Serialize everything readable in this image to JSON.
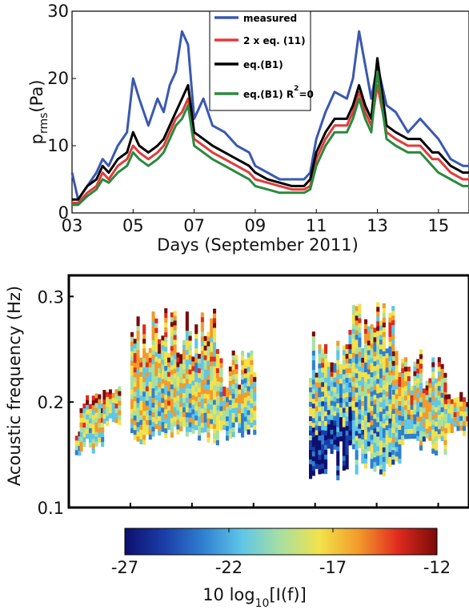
{
  "chart_data": [
    {
      "type": "line",
      "xlabel": "Days (September 2011)",
      "ylabel": "p",
      "ylabel_sub": "rms",
      "ylabel_unit": "(Pa)",
      "xlim": [
        3,
        16
      ],
      "ylim": [
        0,
        30
      ],
      "x_ticks": [
        3,
        5,
        7,
        9,
        11,
        13,
        15
      ],
      "x_tick_labels": [
        "03",
        "05",
        "07",
        "09",
        "11",
        "13",
        "15"
      ],
      "y_ticks": [
        0,
        10,
        20,
        30
      ],
      "y_tick_labels": [
        "0",
        "10",
        "20",
        "30"
      ],
      "legend_position": "top-center",
      "series": [
        {
          "name": "measured",
          "color": "#3a58b0",
          "x": [
            3.0,
            3.2,
            3.5,
            3.8,
            4.0,
            4.2,
            4.5,
            4.8,
            5.0,
            5.2,
            5.5,
            5.8,
            6.0,
            6.2,
            6.4,
            6.6,
            6.8,
            7.0,
            7.3,
            7.6,
            8.0,
            8.4,
            8.8,
            9.0,
            9.4,
            9.8,
            10.2,
            10.6,
            10.8,
            11.0,
            11.3,
            11.6,
            12.0,
            12.2,
            12.4,
            12.6,
            12.8,
            13.0,
            13.3,
            13.6,
            14.0,
            14.4,
            14.8,
            15.0,
            15.4,
            15.8,
            16.0
          ],
          "y": [
            6,
            2,
            4,
            6,
            8,
            7,
            10,
            12,
            20,
            17,
            13,
            17,
            15,
            19,
            21,
            27,
            25,
            14,
            17,
            13,
            12,
            10,
            9,
            7,
            6,
            5,
            5,
            5,
            6,
            11,
            15,
            18,
            17,
            20,
            27,
            22,
            17,
            22,
            16,
            15,
            12,
            14,
            12,
            11,
            8,
            7,
            7
          ]
        },
        {
          "name": "2 x eq. (11)",
          "color": "#e23a3a",
          "x": [
            3.0,
            3.2,
            3.5,
            3.8,
            4.0,
            4.2,
            4.5,
            4.8,
            5.0,
            5.2,
            5.5,
            5.8,
            6.0,
            6.2,
            6.4,
            6.6,
            6.8,
            7.0,
            7.3,
            7.6,
            8.0,
            8.4,
            8.8,
            9.0,
            9.4,
            9.8,
            10.2,
            10.6,
            10.8,
            11.0,
            11.3,
            11.6,
            12.0,
            12.2,
            12.4,
            12.6,
            12.8,
            13.0,
            13.3,
            13.6,
            14.0,
            14.4,
            14.8,
            15.0,
            15.4,
            15.8,
            16.0
          ],
          "y": [
            1.5,
            1.5,
            3,
            4,
            6,
            5,
            7,
            8,
            10,
            9,
            8,
            9,
            10,
            12,
            14,
            15,
            17,
            11,
            10,
            9,
            8,
            7,
            6,
            5,
            4.5,
            4,
            3.5,
            3.5,
            4,
            8,
            11,
            13,
            13,
            15,
            18,
            15,
            13,
            19,
            12,
            11,
            10,
            10,
            8,
            8,
            6,
            5,
            5
          ]
        },
        {
          "name": "eq.(B1)",
          "color": "#000000",
          "x": [
            3.0,
            3.2,
            3.5,
            3.8,
            4.0,
            4.2,
            4.5,
            4.8,
            5.0,
            5.2,
            5.5,
            5.8,
            6.0,
            6.2,
            6.4,
            6.6,
            6.8,
            7.0,
            7.3,
            7.6,
            8.0,
            8.4,
            8.8,
            9.0,
            9.4,
            9.8,
            10.2,
            10.6,
            10.8,
            11.0,
            11.3,
            11.6,
            12.0,
            12.2,
            12.4,
            12.6,
            12.8,
            13.0,
            13.3,
            13.6,
            14.0,
            14.4,
            14.8,
            15.0,
            15.4,
            15.8,
            16.0
          ],
          "y": [
            2,
            2,
            4,
            5,
            7,
            6,
            8,
            9,
            12,
            10,
            9,
            10,
            11,
            13,
            15,
            17,
            19,
            12,
            11,
            10,
            9,
            8,
            7,
            6,
            5,
            4.5,
            4,
            4,
            5,
            9,
            12,
            14,
            14,
            16,
            19,
            16,
            14,
            23,
            13,
            12,
            11,
            11,
            9,
            9,
            7,
            6,
            6
          ]
        },
        {
          "name": "eq.(B1) R²=0",
          "color": "#2a8a3e",
          "x": [
            3.0,
            3.2,
            3.5,
            3.8,
            4.0,
            4.2,
            4.5,
            4.8,
            5.0,
            5.2,
            5.5,
            5.8,
            6.0,
            6.2,
            6.4,
            6.6,
            6.8,
            7.0,
            7.3,
            7.6,
            8.0,
            8.4,
            8.8,
            9.0,
            9.4,
            9.8,
            10.2,
            10.6,
            10.8,
            11.0,
            11.3,
            11.6,
            12.0,
            12.2,
            12.4,
            12.6,
            12.8,
            13.0,
            13.3,
            13.6,
            14.0,
            14.4,
            14.8,
            15.0,
            15.4,
            15.8,
            16.0
          ],
          "y": [
            1.2,
            1.2,
            2.5,
            3.5,
            5,
            4.5,
            6,
            7,
            9,
            8,
            7,
            8,
            9,
            11,
            13,
            14,
            16,
            10,
            9,
            8,
            7,
            6,
            5,
            4,
            3.5,
            3,
            3,
            3,
            3.5,
            7,
            10,
            12,
            12,
            14,
            17,
            14,
            12,
            21,
            11,
            10,
            9,
            9,
            7,
            6,
            5,
            4,
            4
          ]
        }
      ],
      "legend_labels": [
        "measured",
        "2 x eq. (11)",
        "eq.(B1)",
        "eq.(B1) R",
        "=0"
      ],
      "legend_superscript": "2"
    },
    {
      "type": "heatmap",
      "ylabel": "Acoustic frequency (Hz)",
      "xlim": [
        3,
        16
      ],
      "ylim": [
        0.1,
        0.32
      ],
      "y_ticks": [
        0.1,
        0.2,
        0.3
      ],
      "y_tick_labels": [
        "0.1",
        "0.2",
        "0.3"
      ],
      "colorbar": {
        "label": "10 log",
        "label_sub": "10",
        "label_tail": "[I(f)]",
        "range": [
          -27,
          -12
        ],
        "ticks": [
          -27,
          -22,
          -17,
          -12
        ],
        "tick_labels": [
          "-27",
          "-22",
          "-17",
          "-12"
        ],
        "colors": [
          "#0d0f6e",
          "#1a3da8",
          "#2f7fd0",
          "#5fc6e8",
          "#a8e0a0",
          "#f2e24a",
          "#f29a2a",
          "#e02a1e",
          "#7a0a0a"
        ]
      }
    }
  ]
}
